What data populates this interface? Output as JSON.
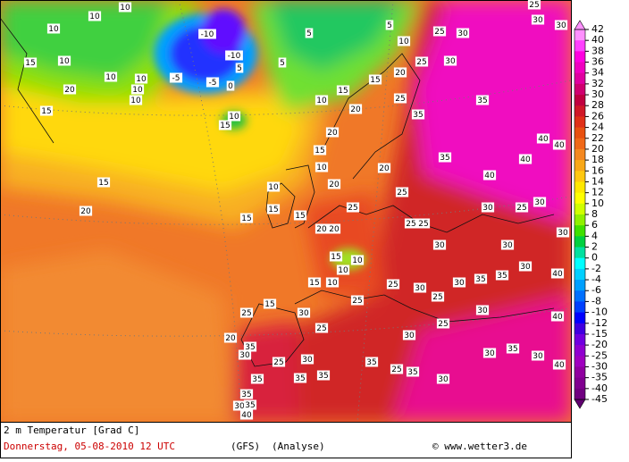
{
  "map": {
    "contour_labels": [
      10,
      10,
      10,
      15,
      10,
      10,
      20,
      15,
      10,
      10,
      10,
      -5,
      -10,
      -10,
      -5,
      0,
      5,
      10,
      15,
      5,
      5,
      5,
      10,
      25,
      30,
      25,
      30,
      30,
      30,
      25,
      20,
      15,
      15,
      10,
      20,
      25,
      35,
      35,
      40,
      40,
      35,
      40,
      40,
      20,
      15,
      10,
      20,
      15,
      20,
      10,
      15,
      15,
      15,
      20,
      25,
      25,
      20,
      20,
      25,
      25,
      30,
      25,
      30,
      30,
      30,
      30,
      15,
      10,
      10,
      15,
      10,
      25,
      30,
      25,
      35,
      35,
      30,
      40,
      15,
      25,
      30,
      25,
      25,
      30,
      25,
      30,
      30,
      40,
      20,
      35,
      30,
      25,
      30,
      35,
      30,
      35,
      30,
      40,
      25,
      35,
      30,
      35,
      35,
      35,
      35,
      30,
      35,
      40
    ]
  },
  "colorbar": {
    "ticks": [
      42,
      40,
      38,
      36,
      34,
      32,
      30,
      28,
      26,
      24,
      22,
      20,
      18,
      16,
      14,
      12,
      10,
      8,
      6,
      4,
      2,
      0,
      -2,
      -4,
      -6,
      -8,
      -10,
      -12,
      -15,
      -20,
      -25,
      -30,
      -35,
      -40,
      -45
    ]
  },
  "caption": {
    "title": "2 m Temperatur [Grad C]",
    "date": "Donnerstag, 05-08-2010  12 UTC",
    "model": "(GFS)",
    "run": "(Analyse)",
    "credit": "© www.wetter3.de"
  }
}
